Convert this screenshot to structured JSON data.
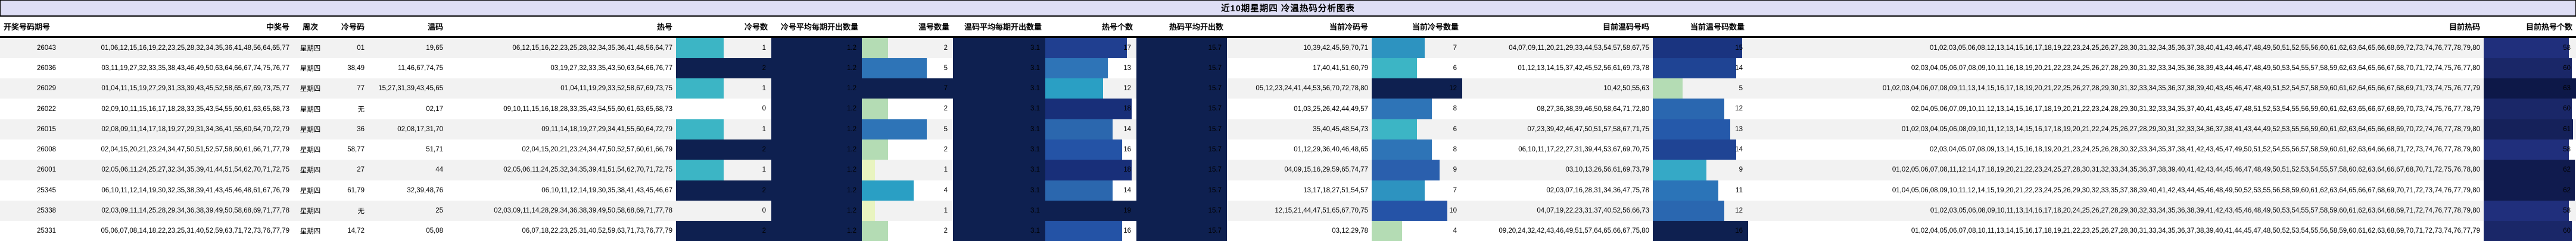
{
  "title": "近10期星期四 冷温热码分析图表",
  "colors": {
    "title_bg": "#dedef5",
    "header_bg": "#ffffff",
    "row_stripe": "#f2f2f2",
    "text": "#000000",
    "navy_full_bar": "#0e2050"
  },
  "columns": [
    {
      "key": "period",
      "label": "开奖号码期号",
      "type": "text",
      "align": "right"
    },
    {
      "key": "winning",
      "label": "中奖号",
      "type": "text",
      "align": "right"
    },
    {
      "key": "week",
      "label": "周次",
      "type": "text",
      "align": "center"
    },
    {
      "key": "cold",
      "label": "冷号码",
      "type": "text",
      "align": "right"
    },
    {
      "key": "warm",
      "label": "温码",
      "type": "text",
      "align": "right"
    },
    {
      "key": "hot",
      "label": "热号",
      "type": "text",
      "align": "right"
    },
    {
      "key": "cold_count",
      "label": "冷号数",
      "type": "bar",
      "max": 2
    },
    {
      "key": "cold_avg",
      "label": "冷号平均每期开出数量",
      "type": "fullbar"
    },
    {
      "key": "warm_count",
      "label": "温号数量",
      "type": "bar",
      "max": 7
    },
    {
      "key": "warm_avg",
      "label": "温码平均每期开出数量",
      "type": "fullbar"
    },
    {
      "key": "hot_count",
      "label": "热号个数",
      "type": "bar",
      "max": 19
    },
    {
      "key": "hot_avg",
      "label": "热码平均开出数",
      "type": "fullbar"
    },
    {
      "key": "cur_cold",
      "label": "当前冷码号",
      "type": "text",
      "align": "right"
    },
    {
      "key": "cur_cold_count",
      "label": "当前冷号数量",
      "type": "bar",
      "max": 12
    },
    {
      "key": "cur_warm",
      "label": "目前温码号吗",
      "type": "text",
      "align": "right"
    },
    {
      "key": "cur_warm_count",
      "label": "当前温号码数量",
      "type": "bar",
      "max": 16
    },
    {
      "key": "cur_hot",
      "label": "目前热码",
      "type": "text",
      "align": "right"
    },
    {
      "key": "cur_hot_count",
      "label": "目前热号个数",
      "type": "bar",
      "max": 63
    }
  ],
  "bar_colors": {
    "fullbar": "#0e2050",
    "cold_count": {
      "1": "#3cb5c5",
      "2": "#0e2050"
    },
    "warm_count": {
      "1": "#e9f4c0",
      "2": "#b4dcb4",
      "4": "#2a9fc4",
      "5": "#2e74b7",
      "7": "#0e2050"
    },
    "hot_count": {
      "12": "#2a9fc4",
      "13": "#2e74b7",
      "14": "#2b67ae",
      "16": "#2453a6",
      "17": "#203f90",
      "18": "#182f79",
      "19": "#0e2050"
    },
    "cur_cold_count": {
      "4": "#b4dcb4",
      "6": "#3cb5c5",
      "7": "#2d93c0",
      "8": "#2e74b7",
      "9": "#2a5fad",
      "10": "#2553a7",
      "12": "#0e2050"
    },
    "cur_warm_count": {
      "5": "#b4dcb4",
      "9": "#35a9c6",
      "11": "#2b74b8",
      "12": "#2a67b0",
      "13": "#2559aa",
      "14": "#1f4494",
      "15": "#1a3480",
      "16": "#0e2050"
    },
    "cur_hot_count": {
      "58": "#202f7c",
      "60": "#1a2768",
      "61": "#15215a",
      "62": "#101b4e",
      "63": "#0d1848"
    }
  },
  "rows": [
    {
      "period": "26043",
      "winning": "01,06,12,15,16,19,22,23,25,28,32,34,35,36,41,48,56,64,65,77",
      "week": "星期四",
      "cold": "01",
      "warm": "19,65",
      "hot": "06,12,15,16,22,23,25,28,32,34,35,36,41,48,56,64,77",
      "cold_count": 1,
      "cold_avg": "1.2",
      "warm_count": 2,
      "warm_avg": "3.1",
      "hot_count": 17,
      "hot_avg": "15.7",
      "cur_cold": "10,39,42,45,59,70,71",
      "cur_cold_count": 7,
      "cur_warm": "04,07,09,11,20,21,29,33,44,53,54,57,58,67,75",
      "cur_warm_count": 15,
      "cur_hot": "01,02,03,05,06,08,12,13,14,15,16,17,18,19,22,23,24,25,26,27,28,30,31,32,34,35,36,37,38,40,41,43,46,47,48,49,50,51,52,55,56,60,61,62,63,64,65,66,68,69,72,73,74,76,77,78,79,80",
      "cur_hot_count": 58
    },
    {
      "period": "26036",
      "winning": "03,11,19,27,32,33,35,38,43,46,49,50,63,64,66,67,74,75,76,77",
      "week": "星期四",
      "cold": "38,49",
      "warm": "11,46,67,74,75",
      "hot": "03,19,27,32,33,35,43,50,63,64,66,76,77",
      "cold_count": 2,
      "cold_avg": "1.2",
      "warm_count": 5,
      "warm_avg": "3.1",
      "hot_count": 13,
      "hot_avg": "15.7",
      "cur_cold": "17,40,41,51,60,79",
      "cur_cold_count": 6,
      "cur_warm": "01,12,13,14,15,37,42,45,52,56,61,69,73,78",
      "cur_warm_count": 14,
      "cur_hot": "02,03,04,05,06,07,08,09,10,11,16,18,19,20,21,22,23,24,25,26,27,28,29,30,31,32,33,34,35,36,38,39,43,44,46,47,48,49,50,53,54,55,57,58,59,62,63,64,65,66,67,68,70,71,72,74,75,76,77,80",
      "cur_hot_count": 60
    },
    {
      "period": "26029",
      "winning": "01,04,11,15,19,27,29,31,33,39,43,45,52,58,65,67,69,73,75,77",
      "week": "星期四",
      "cold": "77",
      "warm": "15,27,31,39,43,45,65",
      "hot": "01,04,11,19,29,33,52,58,67,69,73,75",
      "cold_count": 1,
      "cold_avg": "1.2",
      "warm_count": 7,
      "warm_avg": "3.1",
      "hot_count": 12,
      "hot_avg": "15.7",
      "cur_cold": "05,12,23,24,41,44,53,56,70,72,78,80",
      "cur_cold_count": 12,
      "cur_warm": "10,42,50,55,63",
      "cur_warm_count": 5,
      "cur_hot": "01,02,03,04,06,07,08,09,11,13,14,15,16,17,18,19,20,21,22,25,26,27,28,29,30,31,32,33,34,35,36,37,38,39,40,43,45,46,47,48,49,51,52,54,57,58,59,60,61,62,64,65,66,67,68,69,71,73,74,75,76,77,79",
      "cur_hot_count": 63
    },
    {
      "period": "26022",
      "winning": "02,09,10,11,15,16,17,18,28,33,35,43,54,55,60,61,63,65,68,73",
      "week": "星期四",
      "cold": "无",
      "warm": "02,17",
      "hot": "09,10,11,15,16,18,28,33,35,43,54,55,60,61,63,65,68,73",
      "cold_count": 0,
      "cold_avg": "1.2",
      "warm_count": 2,
      "warm_avg": "3.1",
      "hot_count": 18,
      "hot_avg": "15.7",
      "cur_cold": "01,03,25,26,42,44,49,57",
      "cur_cold_count": 8,
      "cur_warm": "08,27,36,38,39,46,50,58,64,71,72,80",
      "cur_warm_count": 12,
      "cur_hot": "02,04,05,06,07,09,10,11,12,13,14,15,16,17,18,19,20,21,22,23,24,28,29,30,31,32,33,34,35,37,40,41,43,45,47,48,51,52,53,54,55,56,59,60,61,62,63,65,66,67,68,69,70,73,74,75,76,77,78,79",
      "cur_hot_count": 60
    },
    {
      "period": "26015",
      "winning": "02,08,09,11,14,17,18,19,27,29,31,34,36,41,55,60,64,70,72,79",
      "week": "星期四",
      "cold": "36",
      "warm": "02,08,17,31,70",
      "hot": "09,11,14,18,19,27,29,34,41,55,60,64,72,79",
      "cold_count": 1,
      "cold_avg": "1.2",
      "warm_count": 5,
      "warm_avg": "3.1",
      "hot_count": 14,
      "hot_avg": "15.7",
      "cur_cold": "35,40,45,48,54,73",
      "cur_cold_count": 6,
      "cur_warm": "07,23,39,42,46,47,50,51,57,58,67,71,75",
      "cur_warm_count": 13,
      "cur_hot": "01,02,03,04,05,06,08,09,10,11,12,13,14,15,16,17,18,19,20,21,22,24,25,26,27,28,29,30,31,32,33,34,36,37,38,41,43,44,49,52,53,55,56,59,60,61,62,63,64,65,66,68,69,70,72,74,76,77,78,79,80",
      "cur_hot_count": 61
    },
    {
      "period": "26008",
      "winning": "02,04,15,20,21,23,24,34,47,50,51,52,57,58,60,61,66,71,77,79",
      "week": "星期四",
      "cold": "58,77",
      "warm": "51,71",
      "hot": "02,04,15,20,21,23,24,34,47,50,52,57,60,61,66,79",
      "cold_count": 2,
      "cold_avg": "1.2",
      "warm_count": 2,
      "warm_avg": "3.1",
      "hot_count": 16,
      "hot_avg": "15.7",
      "cur_cold": "01,12,29,36,40,46,48,65",
      "cur_cold_count": 8,
      "cur_warm": "06,10,11,17,22,27,31,39,44,53,67,69,70,75",
      "cur_warm_count": 14,
      "cur_hot": "02,03,04,05,07,08,09,13,14,15,16,18,19,20,21,23,24,25,26,28,30,32,33,34,35,37,38,41,42,43,45,47,49,50,51,52,54,55,56,57,58,59,60,61,62,63,64,66,68,71,72,73,74,76,77,78,79,80",
      "cur_hot_count": 58
    },
    {
      "period": "26001",
      "winning": "02,05,06,11,24,25,27,32,34,35,39,41,44,51,54,62,70,71,72,75",
      "week": "星期四",
      "cold": "27",
      "warm": "44",
      "hot": "02,05,06,11,24,25,32,34,35,39,41,51,54,62,70,71,72,75",
      "cold_count": 1,
      "cold_avg": "1.2",
      "warm_count": 1,
      "warm_avg": "3.1",
      "hot_count": 18,
      "hot_avg": "15.7",
      "cur_cold": "04,09,15,16,29,59,65,74,77",
      "cur_cold_count": 9,
      "cur_warm": "03,10,13,26,56,61,69,73,79",
      "cur_warm_count": 9,
      "cur_hot": "01,02,05,06,07,08,11,12,14,17,18,19,20,21,22,23,24,25,27,28,30,31,32,33,34,35,36,37,38,39,40,41,42,43,44,45,46,47,48,49,50,51,52,53,54,55,57,58,60,62,63,64,66,67,68,70,71,72,75,76,78,80",
      "cur_hot_count": 62
    },
    {
      "period": "25345",
      "winning": "06,10,11,12,14,19,30,32,35,38,39,41,43,45,46,48,61,67,76,79",
      "week": "星期四",
      "cold": "61,79",
      "warm": "32,39,48,76",
      "hot": "06,10,11,12,14,19,30,35,38,41,43,45,46,67",
      "cold_count": 2,
      "cold_avg": "1.2",
      "warm_count": 4,
      "warm_avg": "3.1",
      "hot_count": 14,
      "hot_avg": "15.7",
      "cur_cold": "13,17,18,27,51,54,57",
      "cur_cold_count": 7,
      "cur_warm": "02,03,07,16,28,31,34,36,47,75,78",
      "cur_warm_count": 11,
      "cur_hot": "01,04,05,06,08,09,10,11,12,14,15,19,20,21,22,23,24,25,26,29,30,32,33,35,37,38,39,40,41,42,43,44,45,46,48,49,50,52,53,55,56,58,59,60,61,62,63,64,65,66,67,68,69,70,71,72,73,74,76,77,79,80",
      "cur_hot_count": 62
    },
    {
      "period": "25338",
      "winning": "02,03,09,11,14,25,28,29,34,36,38,39,49,50,58,68,69,71,77,78",
      "week": "星期四",
      "cold": "无",
      "warm": "25",
      "hot": "02,03,09,11,14,28,29,34,36,38,39,49,50,58,68,69,71,77,78",
      "cold_count": 0,
      "cold_avg": "1.2",
      "warm_count": 1,
      "warm_avg": "3.1",
      "hot_count": 19,
      "hot_avg": "15.7",
      "cur_cold": "12,15,21,44,47,51,65,67,70,75",
      "cur_cold_count": 10,
      "cur_warm": "04,07,19,22,23,31,37,40,52,56,66,73",
      "cur_warm_count": 12,
      "cur_hot": "01,02,03,05,06,08,09,10,11,13,14,16,17,18,20,24,25,26,27,28,29,30,32,33,34,35,36,38,39,41,42,43,45,46,48,49,50,53,54,55,57,58,59,60,61,62,63,64,68,69,71,72,74,76,77,78,79,80",
      "cur_hot_count": 58
    },
    {
      "period": "25331",
      "winning": "05,06,07,08,14,18,22,23,25,31,40,52,59,63,71,72,73,76,77,79",
      "week": "星期四",
      "cold": "14,72",
      "warm": "05,08",
      "hot": "06,07,18,22,23,25,31,40,52,59,63,71,73,76,77,79",
      "cold_count": 2,
      "cold_avg": "1.2",
      "warm_count": 2,
      "warm_avg": "3.1",
      "hot_count": 16,
      "hot_avg": "15.7",
      "cur_cold": "03,12,29,78",
      "cur_cold_count": 4,
      "cur_warm": "09,20,24,32,42,43,46,49,51,57,64,65,66,67,75,80",
      "cur_warm_count": 16,
      "cur_hot": "01,02,04,05,06,07,08,10,11,13,14,15,16,17,18,19,21,22,23,25,26,27,28,30,31,33,34,35,36,37,38,39,40,41,44,45,47,48,50,52,53,54,55,56,58,59,60,61,62,63,68,69,70,71,72,73,74,76,77,79",
      "cur_hot_count": 60
    }
  ]
}
